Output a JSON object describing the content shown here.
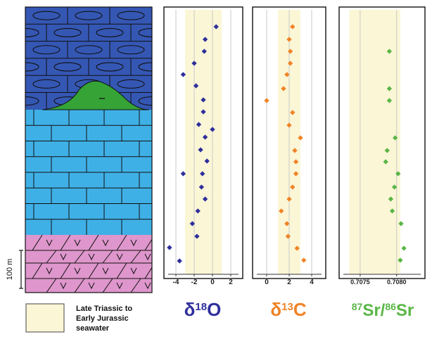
{
  "scale_bar": {
    "label": "100 m"
  },
  "legend": {
    "swatch_color": "#fbf6d6",
    "lines": [
      "Late Triassic  to",
      "Early Jurassic",
      "seawater"
    ]
  },
  "lithology_units": [
    {
      "name": "oolitic limestone",
      "color": "#3557b4"
    },
    {
      "name": "reef mound",
      "color": "#35a336"
    },
    {
      "name": "limestone",
      "color": "#3fb0e6"
    },
    {
      "name": "volcanic",
      "color": "#de96cc"
    }
  ],
  "colors": {
    "d18o": "#2f2f9c",
    "d13c": "#f08326",
    "sr": "#5ab646",
    "band": "#fbf6d6"
  },
  "chart_data": [
    {
      "type": "scatter",
      "id": "d18o",
      "xlim": [
        -5,
        3
      ],
      "ticks": [
        -4,
        -2,
        0,
        2
      ],
      "tick_labels": [
        "-4",
        "-2",
        "0",
        "2"
      ],
      "band": [
        -3,
        1
      ],
      "title": {
        "pre": "δ",
        "sup": "18",
        "main": "O"
      },
      "points": [
        [
          0.4,
          38
        ],
        [
          -0.8,
          56
        ],
        [
          -0.9,
          73
        ],
        [
          -2.0,
          90
        ],
        [
          -3.2,
          106
        ],
        [
          -1.8,
          122
        ],
        [
          -1.0,
          142
        ],
        [
          -1.0,
          159
        ],
        [
          -1.5,
          177
        ],
        [
          0.0,
          184
        ],
        [
          -0.8,
          195
        ],
        [
          -1.3,
          213
        ],
        [
          -0.6,
          229
        ],
        [
          -1.1,
          247
        ],
        [
          -3.2,
          247
        ],
        [
          -1.2,
          266
        ],
        [
          -0.8,
          283
        ],
        [
          -1.6,
          300
        ],
        [
          -2.2,
          318
        ],
        [
          -1.7,
          336
        ],
        [
          -4.7,
          352
        ],
        [
          -3.6,
          371
        ]
      ]
    },
    {
      "type": "scatter",
      "id": "d13c",
      "xlim": [
        -1,
        5
      ],
      "ticks": [
        0,
        2,
        4
      ],
      "tick_labels": [
        "0",
        "2",
        "4"
      ],
      "band": [
        1.0,
        3.0
      ],
      "title": {
        "pre": "δ",
        "sup": "13",
        "main": "C"
      },
      "points": [
        [
          2.3,
          38
        ],
        [
          2.0,
          56
        ],
        [
          2.1,
          73
        ],
        [
          2.1,
          90
        ],
        [
          1.8,
          106
        ],
        [
          1.5,
          126
        ],
        [
          0.0,
          143
        ],
        [
          2.3,
          160
        ],
        [
          2.0,
          178
        ],
        [
          3.0,
          196
        ],
        [
          2.5,
          214
        ],
        [
          2.6,
          230
        ],
        [
          2.6,
          247
        ],
        [
          2.3,
          266
        ],
        [
          2.0,
          283
        ],
        [
          1.3,
          300
        ],
        [
          1.8,
          318
        ],
        [
          1.9,
          336
        ],
        [
          2.7,
          353
        ],
        [
          3.3,
          370
        ]
      ]
    },
    {
      "type": "scatter",
      "id": "sr",
      "xlim": [
        0.70725,
        0.70835
      ],
      "ticks": [
        0.7075,
        0.708
      ],
      "tick_labels": [
        "0.7075",
        "0.7080"
      ],
      "band": [
        0.70735,
        0.70805
      ],
      "title": {
        "pre": "",
        "sup1": "87",
        "main1": "Sr/",
        "sup2": "86",
        "main2": "Sr"
      },
      "points": [
        [
          0.7079,
          73
        ],
        [
          0.7079,
          126
        ],
        [
          0.7079,
          143
        ],
        [
          0.70798,
          196
        ],
        [
          0.70787,
          214
        ],
        [
          0.70785,
          230
        ],
        [
          0.70802,
          247
        ],
        [
          0.70797,
          266
        ],
        [
          0.70792,
          283
        ],
        [
          0.70794,
          300
        ],
        [
          0.70806,
          318
        ],
        [
          0.7081,
          353
        ],
        [
          0.70805,
          370
        ]
      ]
    }
  ]
}
